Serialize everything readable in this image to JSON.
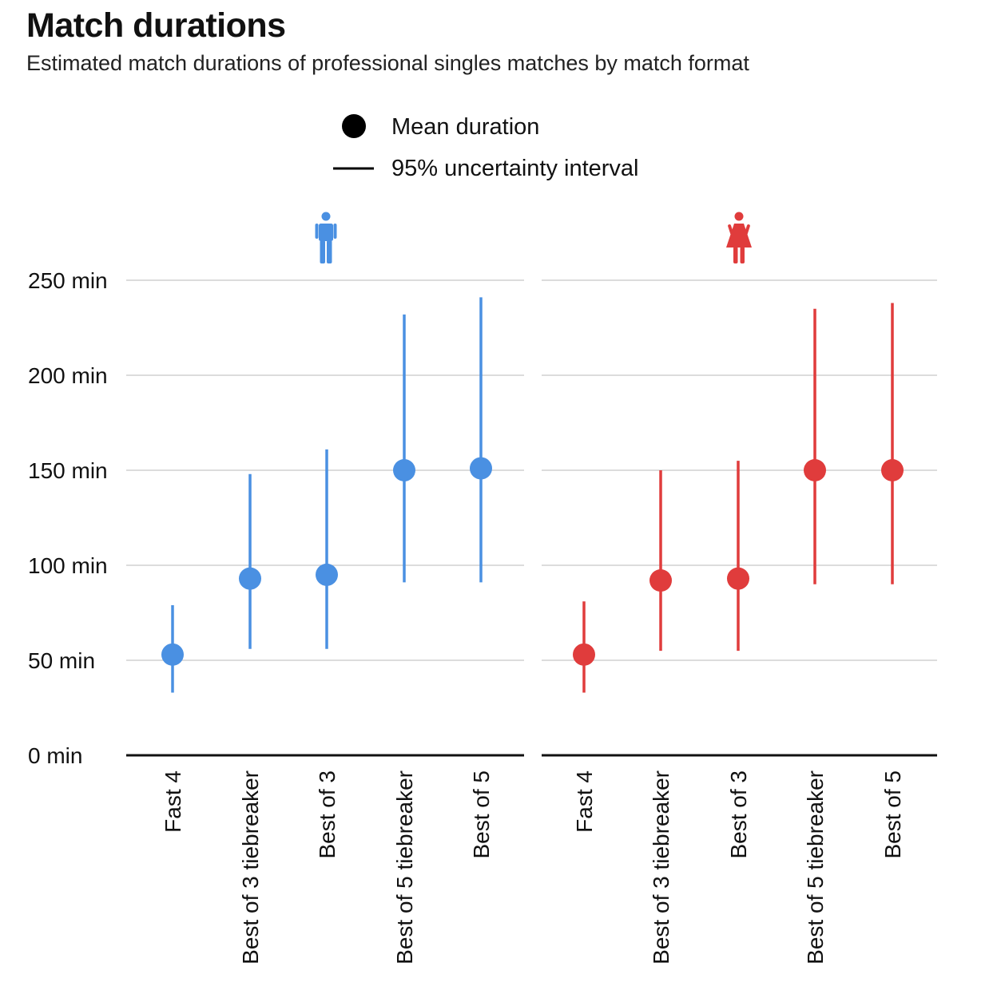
{
  "title": "Match durations",
  "subtitle": "Estimated match durations of professional singles matches by match format",
  "legend": {
    "mean_label": "Mean duration",
    "interval_label": "95% uncertainty interval"
  },
  "colors": {
    "men": "#4a90e2",
    "women": "#e03c3c",
    "grid": "#c8c8c8",
    "axis": "#111111"
  },
  "chart_data": [
    {
      "type": "scatter",
      "panel": "men",
      "icon": "man-icon",
      "categories": [
        "Fast 4",
        "Best of 3 tiebreaker",
        "Best of 3",
        "Best of 5 tiebreaker",
        "Best of 5"
      ],
      "mean": [
        53,
        93,
        95,
        150,
        151
      ],
      "lower": [
        33,
        56,
        56,
        91,
        91
      ],
      "upper": [
        79,
        148,
        161,
        232,
        241
      ],
      "yticks": [
        "0 min",
        "50 min",
        "100 min",
        "150 min",
        "200 min",
        "250 min"
      ],
      "ylim": [
        0,
        250
      ],
      "grid": true
    },
    {
      "type": "scatter",
      "panel": "women",
      "icon": "woman-icon",
      "categories": [
        "Fast 4",
        "Best of 3 tiebreaker",
        "Best of 3",
        "Best of 5 tiebreaker",
        "Best of 5"
      ],
      "mean": [
        53,
        92,
        93,
        150,
        150
      ],
      "lower": [
        33,
        55,
        55,
        90,
        90
      ],
      "upper": [
        81,
        150,
        155,
        235,
        238
      ],
      "yticks": [
        "0 min",
        "50 min",
        "100 min",
        "150 min",
        "200 min",
        "250 min"
      ],
      "ylim": [
        0,
        250
      ],
      "grid": true
    }
  ]
}
